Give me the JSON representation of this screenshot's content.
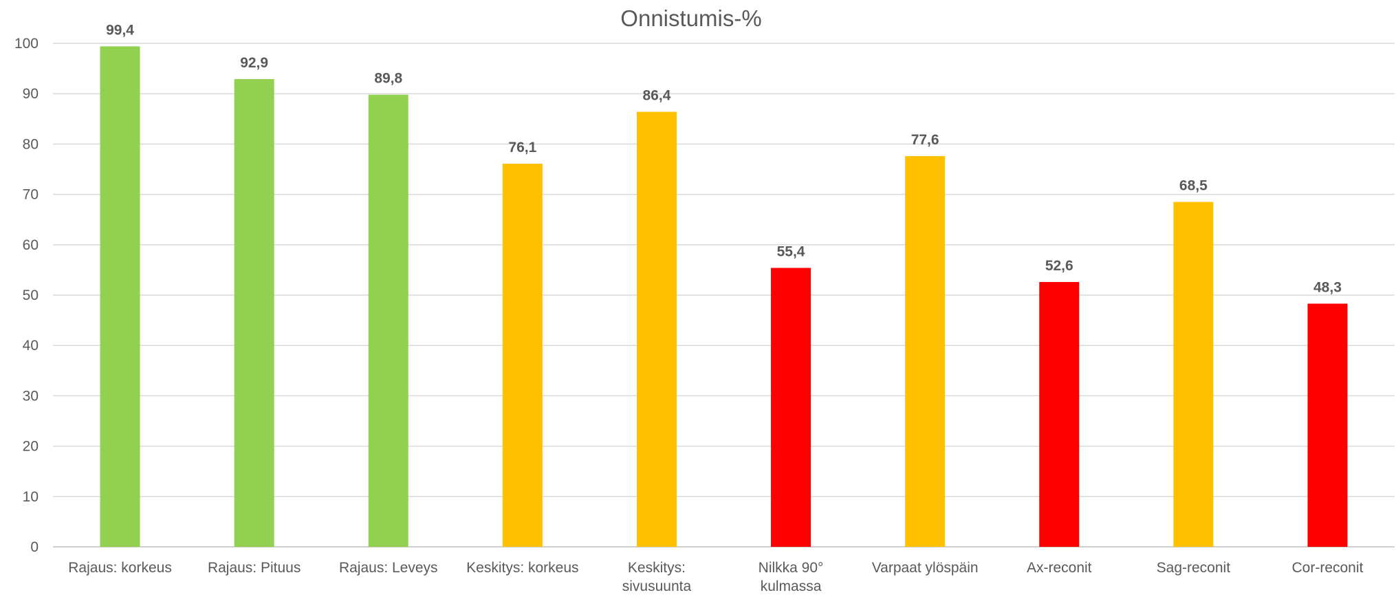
{
  "chart_data": {
    "type": "bar",
    "title": "Onnistumis-%",
    "xlabel": "",
    "ylabel": "",
    "ylim": [
      0,
      100
    ],
    "yticks": [
      0,
      10,
      20,
      30,
      40,
      50,
      60,
      70,
      80,
      90,
      100
    ],
    "grid": true,
    "legend": "none",
    "categories": [
      "Rajaus: korkeus",
      "Rajaus: Pituus",
      "Rajaus: Leveys",
      "Keskitys: korkeus",
      "Keskitys: sivusuunta",
      "Nilkka 90° kulmassa",
      "Varpaat ylöspäin",
      "Ax-reconit",
      "Sag-reconit",
      "Cor-reconit"
    ],
    "values": [
      99.4,
      92.9,
      89.8,
      76.1,
      86.4,
      55.4,
      77.6,
      52.6,
      68.5,
      48.3
    ],
    "value_labels": [
      "99,4",
      "92,9",
      "89,8",
      "76,1",
      "86,4",
      "55,4",
      "77,6",
      "52,6",
      "68,5",
      "48,3"
    ],
    "bar_colors": [
      "#92d050",
      "#92d050",
      "#92d050",
      "#ffc000",
      "#ffc000",
      "#ff0000",
      "#ffc000",
      "#ff0000",
      "#ffc000",
      "#ff0000"
    ],
    "colors": {
      "grid": "#d9d9d9",
      "text": "#595959",
      "green": "#92d050",
      "amber": "#ffc000",
      "red": "#ff0000"
    }
  }
}
